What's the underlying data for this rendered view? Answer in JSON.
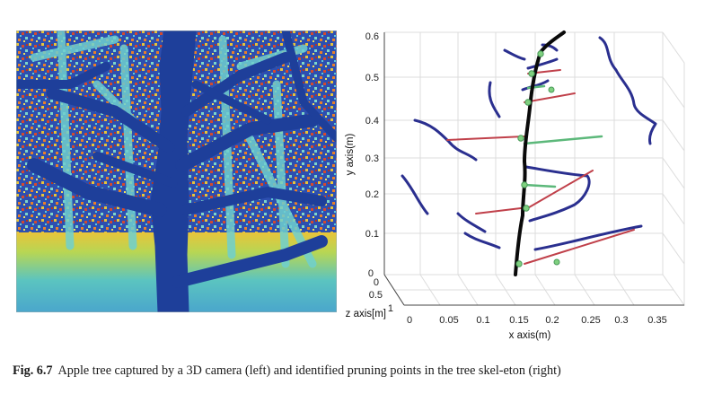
{
  "figure": {
    "left_panel": {
      "description_icon": "depth-image"
    },
    "right_panel": {
      "y_axis": {
        "label": "y axis(m)",
        "ticks": [
          "0",
          "0.1",
          "0.2",
          "0.3",
          "0.4",
          "0.5",
          "0.6"
        ]
      },
      "z_axis": {
        "label": "z axis[m]",
        "ticks": [
          "0",
          "0.5",
          "1"
        ]
      },
      "x_axis": {
        "label": "x axis(m)",
        "ticks": [
          "0",
          "0.05",
          "0.1",
          "0.15",
          "0.2",
          "0.25",
          "0.3",
          "0.35"
        ]
      }
    }
  },
  "caption": {
    "label": "Fig. 6.7",
    "text": "Apple tree captured by a 3D camera (left) and identified pruning points in the tree skel-eton (right)"
  },
  "colors": {
    "trunk": "#0a0a0a",
    "branch": "#2a2f8f",
    "pruning_point": "#7fd07f",
    "link": "#c0404a",
    "depth_bg": "#1e3f9a"
  }
}
